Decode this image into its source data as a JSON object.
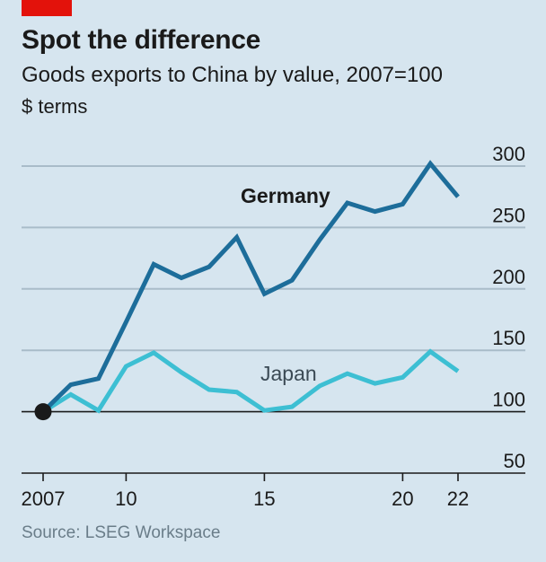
{
  "header": {
    "title": "Spot the difference",
    "subtitle": "Goods exports to China by value, 2007=100",
    "unit": "$ terms"
  },
  "footer": {
    "source": "Source: LSEG Workspace"
  },
  "colors": {
    "germany": "#1d6d9a",
    "japan": "#3dbfd3",
    "grid": "#a9bcc9",
    "baseline": "#1a1a1a",
    "accent": "#e3120b"
  },
  "chart_data": {
    "type": "line",
    "x": [
      2007,
      2008,
      2009,
      2010,
      2011,
      2012,
      2013,
      2014,
      2015,
      2016,
      2017,
      2018,
      2019,
      2020,
      2021,
      2022
    ],
    "series": [
      {
        "name": "Germany",
        "values": [
          100,
          122,
          127,
          173,
          220,
          209,
          218,
          242,
          196,
          207,
          240,
          270,
          263,
          269,
          302,
          275
        ]
      },
      {
        "name": "Japan",
        "values": [
          100,
          114,
          101,
          137,
          148,
          132,
          118,
          116,
          101,
          104,
          121,
          131,
          123,
          128,
          149,
          133
        ]
      }
    ],
    "y_ticks": [
      50,
      100,
      150,
      200,
      250,
      300
    ],
    "x_ticks": [
      {
        "value": 2007,
        "label": "2007"
      },
      {
        "value": 2010,
        "label": "10"
      },
      {
        "value": 2015,
        "label": "15"
      },
      {
        "value": 2020,
        "label": "20"
      },
      {
        "value": 2022,
        "label": "22"
      }
    ],
    "ylim": [
      50,
      300
    ],
    "xlim": [
      2007,
      2022
    ],
    "baseline": 100,
    "grid": true
  }
}
